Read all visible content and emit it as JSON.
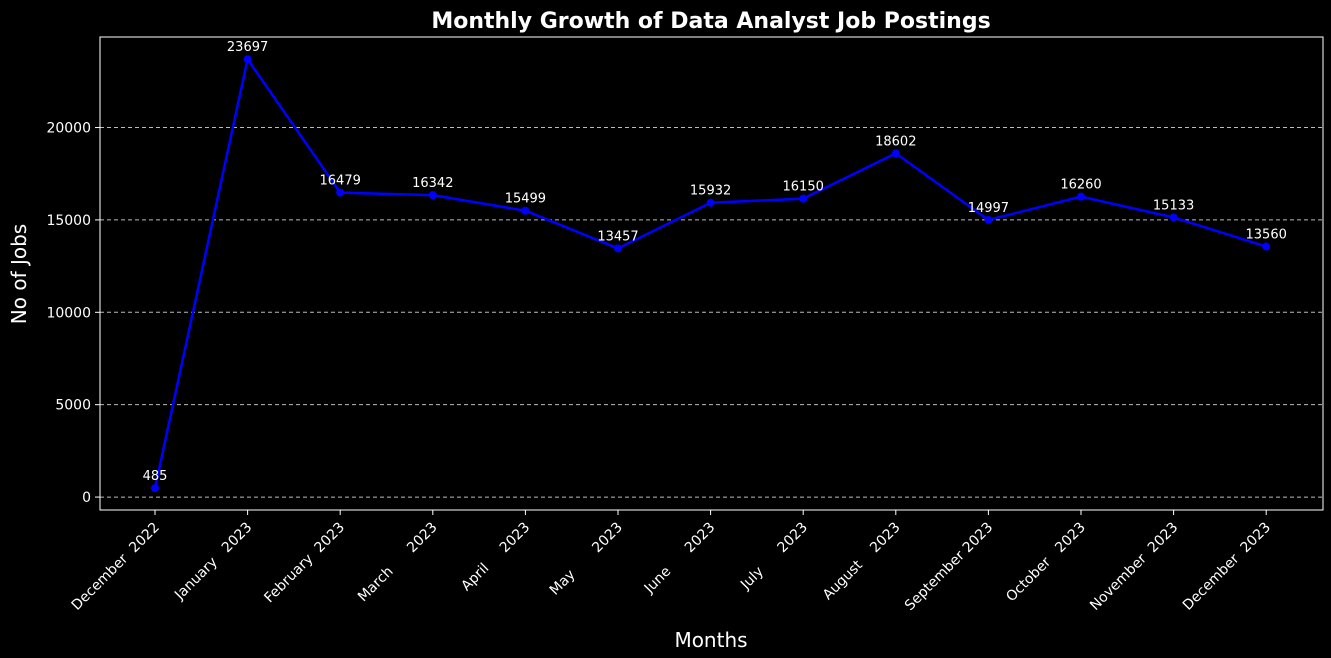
{
  "chart_data": {
    "type": "line",
    "title": "Monthly Growth of Data Analyst Job Postings",
    "xlabel": "Months",
    "ylabel": "No of Jobs",
    "categories": [
      "December  2022",
      "January   2023",
      "February  2023",
      "March      2023",
      "April     2023",
      "May       2023",
      "June      2023",
      "July      2023",
      "August    2023",
      "September 2023",
      "October   2023",
      "November  2023",
      "December  2023"
    ],
    "series": [
      {
        "values": [
          485,
          23697,
          16479,
          16342,
          15499,
          13457,
          15932,
          16150,
          18602,
          14997,
          16260,
          15133,
          13560
        ],
        "color": "#0000ff"
      }
    ],
    "ylim": [
      -700,
      24900
    ],
    "yticks": [
      0,
      5000,
      10000,
      15000,
      20000
    ],
    "grid": "y-dashed",
    "background": "#000000",
    "text_color": "#ffffff"
  }
}
